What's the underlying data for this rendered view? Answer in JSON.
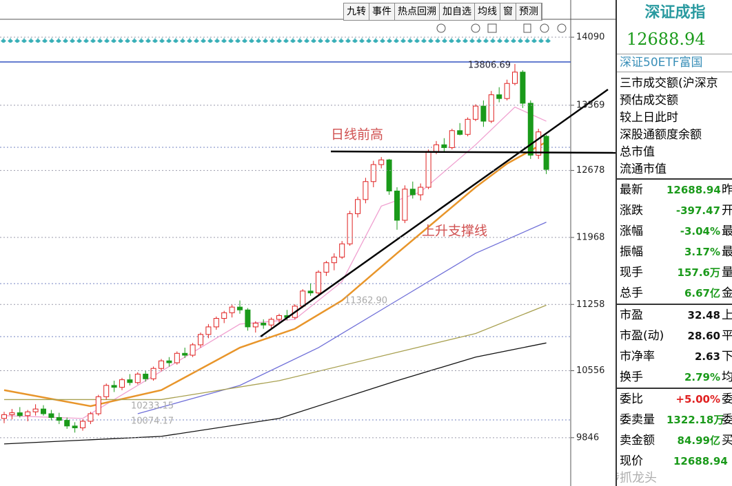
{
  "toolbar": [
    "九转",
    "事件",
    "热点回溯",
    "加自选",
    "均线",
    "窗",
    "预测"
  ],
  "chart_data": {
    "type": "candlestick",
    "ylim": [
      9334,
      14280
    ],
    "yticks": [
      14090,
      13369,
      12678,
      11968,
      11258,
      10556,
      9846
    ],
    "up_color": "#e02020",
    "down_color": "#1a9a1a",
    "candles": [
      [
        10050,
        10120,
        10000,
        10090
      ],
      [
        10090,
        10150,
        10040,
        10110
      ],
      [
        10110,
        10170,
        10060,
        10080
      ],
      [
        10080,
        10140,
        10020,
        10120
      ],
      [
        10120,
        10200,
        10080,
        10150
      ],
      [
        10150,
        10190,
        10080,
        10100
      ],
      [
        10100,
        10140,
        10030,
        10060
      ],
      [
        10060,
        10110,
        9990,
        10030
      ],
      [
        10030,
        10060,
        9940,
        9970
      ],
      [
        9970,
        10010,
        9900,
        9950
      ],
      [
        9950,
        10040,
        9920,
        10020
      ],
      [
        10020,
        10120,
        9990,
        10100
      ],
      [
        10100,
        10300,
        10080,
        10280
      ],
      [
        10280,
        10420,
        10250,
        10400
      ],
      [
        10400,
        10450,
        10330,
        10380
      ],
      [
        10380,
        10480,
        10350,
        10460
      ],
      [
        10460,
        10520,
        10400,
        10430
      ],
      [
        10430,
        10540,
        10410,
        10520
      ],
      [
        10520,
        10560,
        10440,
        10470
      ],
      [
        10470,
        10600,
        10450,
        10580
      ],
      [
        10580,
        10680,
        10550,
        10660
      ],
      [
        10660,
        10700,
        10600,
        10640
      ],
      [
        10640,
        10760,
        10620,
        10740
      ],
      [
        10740,
        10800,
        10690,
        10720
      ],
      [
        10720,
        10850,
        10700,
        10830
      ],
      [
        10830,
        10960,
        10800,
        10940
      ],
      [
        10940,
        11050,
        10900,
        11020
      ],
      [
        11020,
        11130,
        10990,
        11110
      ],
      [
        11110,
        11190,
        11060,
        11170
      ],
      [
        11170,
        11260,
        11120,
        11230
      ],
      [
        11230,
        11300,
        11160,
        11200
      ],
      [
        11200,
        11220,
        10980,
        11020
      ],
      [
        11020,
        11080,
        10960,
        11060
      ],
      [
        11060,
        11100,
        11000,
        11040
      ],
      [
        11040,
        11120,
        11010,
        11100
      ],
      [
        11100,
        11160,
        11060,
        11140
      ],
      [
        11140,
        11200,
        11090,
        11120
      ],
      [
        11120,
        11260,
        11100,
        11240
      ],
      [
        11240,
        11420,
        11220,
        11400
      ],
      [
        11400,
        11480,
        11350,
        11380
      ],
      [
        11380,
        11620,
        11360,
        11600
      ],
      [
        11600,
        11720,
        11560,
        11700
      ],
      [
        11700,
        11800,
        11620,
        11760
      ],
      [
        11760,
        11930,
        11740,
        11900
      ],
      [
        11900,
        12250,
        11880,
        12220
      ],
      [
        12220,
        12400,
        12180,
        12370
      ],
      [
        12370,
        12600,
        12330,
        12560
      ],
      [
        12560,
        12780,
        12500,
        12740
      ],
      [
        12740,
        12820,
        12700,
        12790
      ],
      [
        12790,
        12800,
        12420,
        12460
      ],
      [
        12460,
        12500,
        12050,
        12150
      ],
      [
        12150,
        12520,
        12120,
        12480
      ],
      [
        12480,
        12560,
        12380,
        12420
      ],
      [
        12420,
        12540,
        12360,
        12500
      ],
      [
        12500,
        12900,
        12480,
        12880
      ],
      [
        12880,
        12990,
        12850,
        12950
      ],
      [
        12950,
        13020,
        12880,
        12920
      ],
      [
        12920,
        13120,
        12900,
        13100
      ],
      [
        13100,
        13180,
        13050,
        13060
      ],
      [
        13060,
        13240,
        13040,
        13220
      ],
      [
        13220,
        13380,
        13200,
        13360
      ],
      [
        13360,
        13420,
        13140,
        13200
      ],
      [
        13200,
        13520,
        13180,
        13480
      ],
      [
        13480,
        13560,
        13400,
        13440
      ],
      [
        13440,
        13640,
        13420,
        13600
      ],
      [
        13600,
        13806.69,
        13580,
        13720
      ],
      [
        13720,
        13740,
        13340,
        13390
      ],
      [
        13390,
        13420,
        12800,
        12840
      ],
      [
        12840,
        13120,
        12800,
        13086.41
      ],
      [
        13040,
        13055,
        12640,
        12688.94
      ]
    ],
    "ma": [
      {
        "color": "#f0a0d0",
        "x": [
          0,
          10,
          20,
          30,
          37,
          43,
          48,
          53,
          60,
          65,
          69
        ],
        "values": [
          10080,
          10050,
          10550,
          11050,
          11100,
          11500,
          12300,
          12450,
          12950,
          13350,
          13200
        ]
      },
      {
        "color": "#e8952a",
        "x": [
          0,
          11,
          20,
          30,
          37,
          43,
          50,
          55,
          60,
          64,
          69
        ],
        "values": [
          10350,
          10180,
          10350,
          10800,
          11000,
          11300,
          11800,
          12150,
          12500,
          12750,
          12980
        ]
      },
      {
        "color": "#6f6fd8",
        "x": [
          17,
          30,
          40,
          50,
          60,
          69
        ],
        "values": [
          10100,
          10400,
          10800,
          11300,
          11800,
          12130
        ]
      },
      {
        "color": "#a8a050",
        "x": [
          0,
          20,
          35,
          50,
          60,
          69
        ],
        "values": [
          10250,
          10250,
          10450,
          10750,
          10950,
          11250
        ]
      },
      {
        "color": "#111111",
        "x": [
          0,
          20,
          35,
          50,
          60,
          69
        ],
        "values": [
          9780,
          9860,
          10050,
          10450,
          10700,
          10850
        ]
      }
    ],
    "annotations": [
      "日线前高",
      "上升支撑线"
    ],
    "range_labels": [
      "11362.90",
      "10233.15",
      "10074.17"
    ]
  },
  "quote": {
    "title": "深证成指",
    "price": "12688.94",
    "etf": "深证50ETF富国",
    "items": [
      "三市成交额(沪深京",
      "预估成交额",
      "较上日此时",
      "深股通额度余额",
      "总市值",
      "流通市值"
    ],
    "table": [
      [
        "最新",
        "12688.94",
        "昨"
      ],
      [
        "涨跌",
        "-397.47",
        "开"
      ],
      [
        "涨幅",
        "-3.04%",
        "最"
      ],
      [
        "振幅",
        "3.17%",
        "最"
      ],
      [
        "现手",
        "157.6万",
        "量"
      ],
      [
        "总手",
        "6.67亿",
        "金"
      ]
    ],
    "table2": [
      [
        "市盈",
        "32.48",
        "上"
      ],
      [
        "市盈(动)",
        "28.60",
        "平"
      ],
      [
        "市净率",
        "2.63",
        "下"
      ],
      [
        "换手",
        "2.79%",
        "均"
      ]
    ],
    "table3": [
      [
        "委比",
        "+5.00%",
        "委"
      ],
      [
        "委卖量",
        "1322.18万",
        "委"
      ],
      [
        "卖金额",
        "84.99亿",
        "买"
      ],
      [
        "现价",
        "12688.94",
        ""
      ]
    ],
    "watermark": "@涉涉抓龙头"
  }
}
